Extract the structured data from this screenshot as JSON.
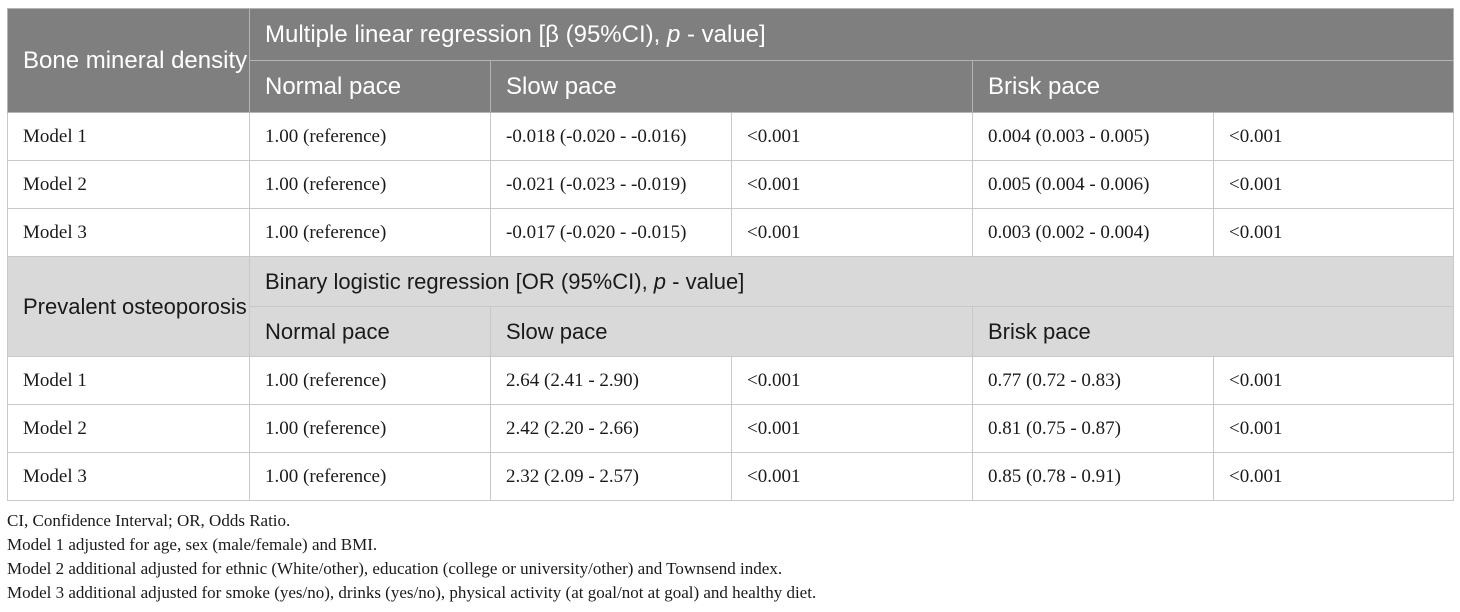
{
  "section1": {
    "row_label": "Bone mineral density",
    "title_prefix": "Multiple linear regression [β (95%CI), ",
    "title_p": "p",
    "title_suffix": " - value]",
    "columns": [
      "Normal pace",
      "Slow pace",
      "Brisk pace"
    ],
    "rows": [
      {
        "model": "Model 1",
        "normal": "1.00 (reference)",
        "slow": "-0.018 (-0.020 - -0.016)",
        "slow_p": "<0.001",
        "brisk": "0.004 (0.003 - 0.005)",
        "brisk_p": "<0.001"
      },
      {
        "model": "Model 2",
        "normal": "1.00 (reference)",
        "slow": "-0.021 (-0.023 - -0.019)",
        "slow_p": "<0.001",
        "brisk": "0.005 (0.004 - 0.006)",
        "brisk_p": "<0.001"
      },
      {
        "model": "Model 3",
        "normal": "1.00 (reference)",
        "slow": "-0.017 (-0.020 - -0.015)",
        "slow_p": "<0.001",
        "brisk": "0.003 (0.002 - 0.004)",
        "brisk_p": "<0.001"
      }
    ]
  },
  "section2": {
    "row_label": "Prevalent osteoporosis",
    "title_prefix": "Binary logistic regression [OR (95%CI), ",
    "title_p": "p",
    "title_suffix": " - value]",
    "columns": [
      "Normal pace",
      "Slow pace",
      "Brisk pace"
    ],
    "rows": [
      {
        "model": "Model 1",
        "normal": "1.00 (reference)",
        "slow": "2.64 (2.41 - 2.90)",
        "slow_p": "<0.001",
        "brisk": "0.77 (0.72 - 0.83)",
        "brisk_p": "<0.001"
      },
      {
        "model": "Model 2",
        "normal": "1.00 (reference)",
        "slow": "2.42 (2.20 - 2.66)",
        "slow_p": "<0.001",
        "brisk": "0.81 (0.75 - 0.87)",
        "brisk_p": "<0.001"
      },
      {
        "model": "Model 3",
        "normal": "1.00 (reference)",
        "slow": "2.32 (2.09 - 2.57)",
        "slow_p": "<0.001",
        "brisk": "0.85 (0.78 - 0.91)",
        "brisk_p": "<0.001"
      }
    ]
  },
  "footnotes": [
    "CI, Confidence Interval; OR, Odds Ratio.",
    "Model 1 adjusted for age, sex (male/female) and BMI.",
    "Model 2 additional adjusted for ethnic (White/other), education (college or university/other) and Townsend index.",
    "Model 3 additional adjusted for smoke (yes/no), drinks (yes/no), physical activity (at goal/not at goal) and healthy diet."
  ],
  "colors": {
    "header_dark": "#7f7f7f",
    "header_light": "#d9d9d9",
    "border": "#c8c8c8"
  }
}
